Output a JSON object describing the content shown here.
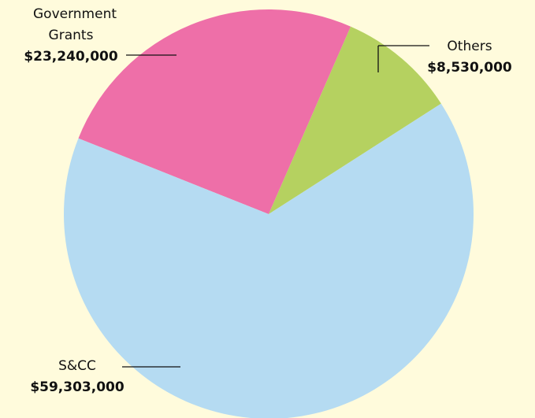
{
  "chart_data": {
    "type": "pie",
    "categories": [
      "Government Grants",
      "Others",
      "S&CC"
    ],
    "values": [
      23240000,
      8530000,
      59303000
    ],
    "value_labels": [
      "$23,240,000",
      "$8,530,000",
      "$59,303,000"
    ],
    "colors": [
      "#ee6fa8",
      "#b5d160",
      "#b5dbf2"
    ]
  }
}
